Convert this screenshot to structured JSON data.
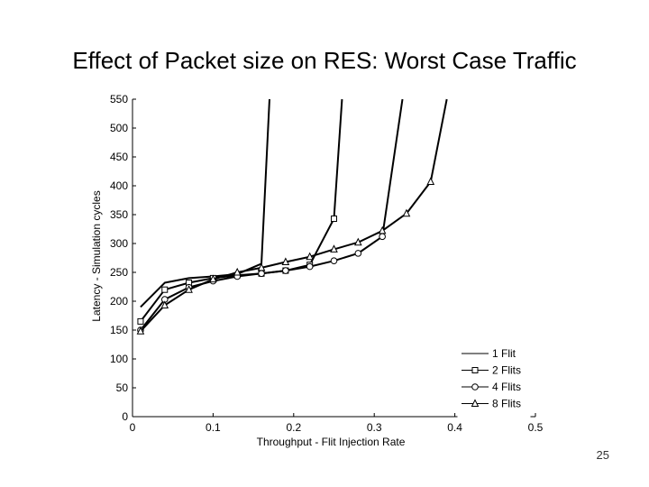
{
  "slide": {
    "title": "Effect of Packet size on RES: Worst Case Traffic",
    "page_number": "25"
  },
  "chart_data": {
    "type": "line",
    "title": "Effect of Packet size on RES: Worst Case Traffic",
    "xlabel": "Throughput - Flit Injection Rate",
    "ylabel": "Latency - Simulation cycles",
    "xlim": [
      0,
      0.5
    ],
    "ylim": [
      0,
      550
    ],
    "x_ticks": [
      0,
      0.1,
      0.2,
      0.3,
      0.4,
      0.5
    ],
    "x_tick_labels": [
      "0",
      "0.1",
      "0.2",
      "0.3",
      "0.4",
      "0.5"
    ],
    "y_ticks": [
      0,
      50,
      100,
      150,
      200,
      250,
      300,
      350,
      400,
      450,
      500,
      550
    ],
    "y_tick_labels": [
      "0",
      "50",
      "100",
      "150",
      "200",
      "250",
      "300",
      "350",
      "400",
      "450",
      "500",
      "550"
    ],
    "grid": false,
    "legend_position": "bottom-right",
    "series": [
      {
        "name": "1 Flit",
        "marker": "none",
        "x": [
          0.01,
          0.04,
          0.07,
          0.1,
          0.13,
          0.16,
          0.17
        ],
        "y": [
          190,
          232,
          240,
          243,
          247,
          265,
          550
        ]
      },
      {
        "name": "2 Flits",
        "marker": "square",
        "x": [
          0.01,
          0.04,
          0.07,
          0.1,
          0.13,
          0.16,
          0.19,
          0.22,
          0.25,
          0.26
        ],
        "y": [
          165,
          220,
          232,
          240,
          245,
          248,
          253,
          263,
          343,
          550
        ]
      },
      {
        "name": "4 Flits",
        "marker": "circle",
        "x": [
          0.01,
          0.04,
          0.07,
          0.1,
          0.13,
          0.16,
          0.19,
          0.22,
          0.25,
          0.28,
          0.31,
          0.335
        ],
        "y": [
          150,
          203,
          224,
          235,
          243,
          248,
          253,
          260,
          270,
          283,
          312,
          550
        ]
      },
      {
        "name": "8 Flits",
        "marker": "triangle",
        "x": [
          0.01,
          0.04,
          0.07,
          0.1,
          0.13,
          0.16,
          0.19,
          0.22,
          0.25,
          0.28,
          0.31,
          0.34,
          0.37,
          0.39
        ],
        "y": [
          148,
          193,
          220,
          238,
          250,
          258,
          268,
          277,
          290,
          302,
          322,
          352,
          407,
          550
        ]
      }
    ]
  }
}
